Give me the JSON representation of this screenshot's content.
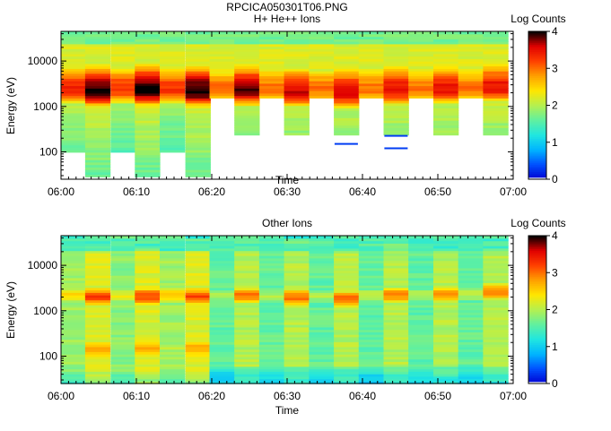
{
  "figure": {
    "filename": "RPCICA050301T06.PNG"
  },
  "colors": {
    "colormap": [
      "#ffffff",
      "#0000d0",
      "#0050ff",
      "#00b4ff",
      "#20e6e0",
      "#60f0a0",
      "#b4f050",
      "#ffe600",
      "#ffa000",
      "#ff4000",
      "#e00000",
      "#000000"
    ],
    "axes": "#000000"
  },
  "chart_data": [
    {
      "type": "heatmap",
      "title": "H+ He++ Ions",
      "xlabel": "Time",
      "ylabel": "Energy (eV)",
      "x_ticks": [
        "06:00",
        "06:10",
        "06:20",
        "06:30",
        "06:40",
        "06:50",
        "07:00"
      ],
      "y_ticks": [
        "100",
        "1000",
        "10000"
      ],
      "yscale": "log",
      "ylim": [
        25,
        45000
      ],
      "colorbar": {
        "label": "Log Counts",
        "ticks": [
          "0",
          "1",
          "2",
          "3",
          "4"
        ],
        "range": [
          0,
          4
        ]
      },
      "sweep_start_minutes": [
        0.0,
        3.2,
        6.6,
        9.8,
        13.1,
        16.5,
        19.7,
        23.0,
        26.3,
        29.6,
        32.9,
        36.2,
        39.5,
        42.8,
        46.1,
        49.4,
        52.7,
        56.0
      ],
      "sweep_length_minutes": 3.3,
      "sweeps": [
        {
          "peak_energy_ev": 2400,
          "peak_log_counts": 3.4,
          "min_energy_ev": 100,
          "low_tail_log_counts": 1.4
        },
        {
          "peak_energy_ev": 2200,
          "peak_log_counts": 4.0,
          "min_energy_ev": 27,
          "low_tail_log_counts": 1.6
        },
        {
          "peak_energy_ev": 2400,
          "peak_log_counts": 3.3,
          "min_energy_ev": 100,
          "low_tail_log_counts": 1.3
        },
        {
          "peak_energy_ev": 2300,
          "peak_log_counts": 4.0,
          "min_energy_ev": 27,
          "low_tail_log_counts": 1.6
        },
        {
          "peak_energy_ev": 2400,
          "peak_log_counts": 3.3,
          "min_energy_ev": 100,
          "low_tail_log_counts": 1.3
        },
        {
          "peak_energy_ev": 2200,
          "peak_log_counts": 4.0,
          "min_energy_ev": 27,
          "low_tail_log_counts": 1.6
        },
        {
          "peak_energy_ev": 2500,
          "peak_log_counts": 3.0,
          "min_energy_ev": 1600,
          "low_tail_log_counts": 1.4
        },
        {
          "peak_energy_ev": 2300,
          "peak_log_counts": 3.8,
          "min_energy_ev": 250,
          "low_tail_log_counts": 1.5
        },
        {
          "peak_energy_ev": 2500,
          "peak_log_counts": 3.0,
          "min_energy_ev": 1600,
          "low_tail_log_counts": 1.4
        },
        {
          "peak_energy_ev": 2100,
          "peak_log_counts": 3.6,
          "min_energy_ev": 250,
          "low_tail_log_counts": 1.5
        },
        {
          "peak_energy_ev": 2400,
          "peak_log_counts": 3.0,
          "min_energy_ev": 1600,
          "low_tail_log_counts": 1.4
        },
        {
          "peak_energy_ev": 2000,
          "peak_log_counts": 3.6,
          "min_energy_ev": 250,
          "low_tail_log_counts": 1.5
        },
        {
          "peak_energy_ev": 2400,
          "peak_log_counts": 3.0,
          "min_energy_ev": 1600,
          "low_tail_log_counts": 1.4
        },
        {
          "peak_energy_ev": 2300,
          "peak_log_counts": 3.5,
          "min_energy_ev": 250,
          "low_tail_log_counts": 1.5
        },
        {
          "peak_energy_ev": 2400,
          "peak_log_counts": 3.0,
          "min_energy_ev": 1600,
          "low_tail_log_counts": 1.4
        },
        {
          "peak_energy_ev": 2400,
          "peak_log_counts": 3.5,
          "min_energy_ev": 250,
          "low_tail_log_counts": 1.5
        },
        {
          "peak_energy_ev": 2500,
          "peak_log_counts": 3.0,
          "min_energy_ev": 1600,
          "low_tail_log_counts": 1.4
        },
        {
          "peak_energy_ev": 2600,
          "peak_log_counts": 3.5,
          "min_energy_ev": 250,
          "low_tail_log_counts": 1.5
        }
      ],
      "isolated_traces": [
        {
          "minutes_start": 36.3,
          "minutes_end": 39.4,
          "energy_ev": 150,
          "log_counts": 0.3
        },
        {
          "minutes_start": 42.9,
          "minutes_end": 46.0,
          "energy_ev": 225,
          "log_counts": 0.3
        },
        {
          "minutes_start": 42.9,
          "minutes_end": 46.0,
          "energy_ev": 120,
          "log_counts": 0.3
        }
      ]
    },
    {
      "type": "heatmap",
      "title": "Other Ions",
      "xlabel": "Time",
      "ylabel": "Energy (eV)",
      "x_ticks": [
        "06:00",
        "06:10",
        "06:20",
        "06:30",
        "06:40",
        "06:50",
        "07:00"
      ],
      "y_ticks": [
        "100",
        "1000",
        "10000"
      ],
      "yscale": "log",
      "ylim": [
        25,
        45000
      ],
      "colorbar": {
        "label": "Log Counts",
        "ticks": [
          "0",
          "1",
          "2",
          "3",
          "4"
        ],
        "range": [
          0,
          4
        ]
      },
      "sweep_start_minutes": [
        0.0,
        3.2,
        6.6,
        9.8,
        13.1,
        16.5,
        19.7,
        23.0,
        26.3,
        29.6,
        32.9,
        36.2,
        39.5,
        42.8,
        46.1,
        49.4,
        52.7,
        56.0
      ],
      "sweep_length_minutes": 3.3,
      "sweeps": [
        {
          "peak_energy_ev": 2300,
          "peak_log_counts": 2.4,
          "background_log_counts": 1.9,
          "low_energy_bump_log_counts": 1.9,
          "bottom_log_counts": 1.4
        },
        {
          "peak_energy_ev": 2100,
          "peak_log_counts": 3.2,
          "background_log_counts": 2.2,
          "low_energy_bump_log_counts": 2.8,
          "bottom_log_counts": 1.8
        },
        {
          "peak_energy_ev": 2300,
          "peak_log_counts": 2.3,
          "background_log_counts": 1.8,
          "low_energy_bump_log_counts": 1.9,
          "bottom_log_counts": 1.4
        },
        {
          "peak_energy_ev": 2100,
          "peak_log_counts": 3.2,
          "background_log_counts": 2.2,
          "low_energy_bump_log_counts": 2.8,
          "bottom_log_counts": 1.8
        },
        {
          "peak_energy_ev": 2300,
          "peak_log_counts": 2.6,
          "background_log_counts": 1.9,
          "low_energy_bump_log_counts": 2.0,
          "bottom_log_counts": 1.4
        },
        {
          "peak_energy_ev": 2100,
          "peak_log_counts": 3.2,
          "background_log_counts": 2.2,
          "low_energy_bump_log_counts": 2.8,
          "bottom_log_counts": 1.8
        },
        {
          "peak_energy_ev": 2200,
          "peak_log_counts": 2.0,
          "background_log_counts": 1.6,
          "low_energy_bump_log_counts": 1.6,
          "bottom_log_counts": 0.9
        },
        {
          "peak_energy_ev": 2200,
          "peak_log_counts": 3.0,
          "background_log_counts": 2.0,
          "low_energy_bump_log_counts": 2.0,
          "bottom_log_counts": 1.2
        },
        {
          "peak_energy_ev": 2200,
          "peak_log_counts": 2.0,
          "background_log_counts": 1.6,
          "low_energy_bump_log_counts": 1.6,
          "bottom_log_counts": 1.0
        },
        {
          "peak_energy_ev": 2000,
          "peak_log_counts": 3.0,
          "background_log_counts": 2.0,
          "low_energy_bump_log_counts": 2.0,
          "bottom_log_counts": 1.2
        },
        {
          "peak_energy_ev": 2200,
          "peak_log_counts": 2.0,
          "background_log_counts": 1.6,
          "low_energy_bump_log_counts": 1.6,
          "bottom_log_counts": 1.0
        },
        {
          "peak_energy_ev": 1900,
          "peak_log_counts": 3.0,
          "background_log_counts": 2.0,
          "low_energy_bump_log_counts": 2.0,
          "bottom_log_counts": 1.2
        },
        {
          "peak_energy_ev": 2300,
          "peak_log_counts": 2.0,
          "background_log_counts": 1.6,
          "low_energy_bump_log_counts": 1.6,
          "bottom_log_counts": 0.9
        },
        {
          "peak_energy_ev": 2300,
          "peak_log_counts": 2.9,
          "background_log_counts": 2.0,
          "low_energy_bump_log_counts": 2.0,
          "bottom_log_counts": 1.2
        },
        {
          "peak_energy_ev": 2300,
          "peak_log_counts": 2.0,
          "background_log_counts": 1.6,
          "low_energy_bump_log_counts": 1.6,
          "bottom_log_counts": 1.0
        },
        {
          "peak_energy_ev": 2400,
          "peak_log_counts": 2.9,
          "background_log_counts": 2.0,
          "low_energy_bump_log_counts": 2.0,
          "bottom_log_counts": 1.2
        },
        {
          "peak_energy_ev": 2400,
          "peak_log_counts": 2.0,
          "background_log_counts": 1.6,
          "low_energy_bump_log_counts": 1.6,
          "bottom_log_counts": 1.0
        },
        {
          "peak_energy_ev": 2700,
          "peak_log_counts": 2.9,
          "background_log_counts": 2.0,
          "low_energy_bump_log_counts": 2.0,
          "bottom_log_counts": 1.2
        }
      ]
    }
  ]
}
